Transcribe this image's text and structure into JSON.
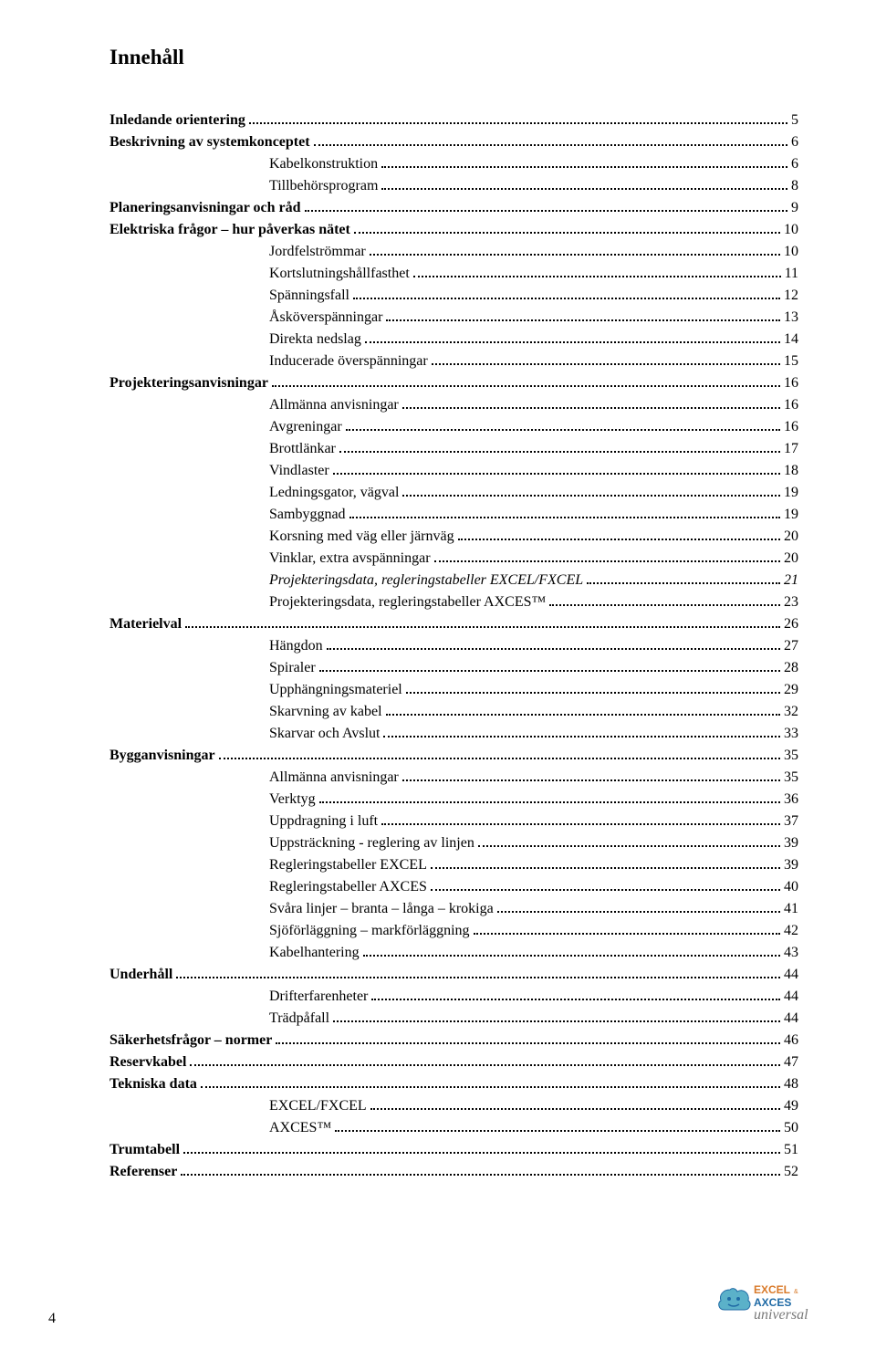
{
  "title": "Innehåll",
  "page_number": "4",
  "text_color": "#000000",
  "background_color": "#ffffff",
  "font_family": "Times New Roman",
  "logo": {
    "text_excel": "EXCEL",
    "text_axces": "AXCES",
    "text_suffix": "universal",
    "excel_color": "#d97a2a",
    "axces_color": "#1f6aa5",
    "universal_color": "#7a7a7a",
    "cloud_fill": "#5bb1c9",
    "cloud_stroke": "#1f6aa5"
  },
  "toc": [
    {
      "label": "Inledande orientering",
      "page": "5",
      "level": 0
    },
    {
      "label": "Beskrivning av systemkonceptet",
      "page": "6",
      "level": 0
    },
    {
      "label": "Kabelkonstruktion",
      "page": "6",
      "level": 1
    },
    {
      "label": "Tillbehörsprogram",
      "page": "8",
      "level": 1
    },
    {
      "label": "Planeringsanvisningar och råd",
      "page": "9",
      "level": 0
    },
    {
      "label": "Elektriska frågor – hur påverkas nätet",
      "page": "10",
      "level": 0
    },
    {
      "label": "Jordfelströmmar",
      "page": "10",
      "level": 1
    },
    {
      "label": "Kortslutningshållfasthet",
      "page": "11",
      "level": 1
    },
    {
      "label": "Spänningsfall",
      "page": "12",
      "level": 1
    },
    {
      "label": "Åsköverspänningar",
      "page": "13",
      "level": 1
    },
    {
      "label": "Direkta nedslag",
      "page": "14",
      "level": 1
    },
    {
      "label": "Inducerade överspänningar",
      "page": "15",
      "level": 1
    },
    {
      "label": "Projekteringsanvisningar",
      "page": "16",
      "level": 0
    },
    {
      "label": "Allmänna anvisningar",
      "page": "16",
      "level": 1
    },
    {
      "label": "Avgreningar",
      "page": "16",
      "level": 1
    },
    {
      "label": "Brottlänkar",
      "page": "17",
      "level": 1
    },
    {
      "label": "Vindlaster",
      "page": "18",
      "level": 1
    },
    {
      "label": "Ledningsgator, vägval",
      "page": "19",
      "level": 1
    },
    {
      "label": "Sambyggnad",
      "page": "19",
      "level": 1
    },
    {
      "label": "Korsning med väg eller järnväg",
      "page": "20",
      "level": 1
    },
    {
      "label": "Vinklar, extra avspänningar",
      "page": "20",
      "level": 1
    },
    {
      "label": "Projekteringsdata, regleringstabeller EXCEL/FXCEL",
      "page": "21",
      "level": 1,
      "italic": true
    },
    {
      "label": "Projekteringsdata, regleringstabeller AXCES™",
      "page": "23",
      "level": 1
    },
    {
      "label": "Materielval",
      "page": "26",
      "level": 0
    },
    {
      "label": "Hängdon",
      "page": "27",
      "level": 1
    },
    {
      "label": "Spiraler",
      "page": "28",
      "level": 1
    },
    {
      "label": "Upphängningsmateriel",
      "page": "29",
      "level": 1
    },
    {
      "label": "Skarvning av kabel",
      "page": "32",
      "level": 1
    },
    {
      "label": "Skarvar och Avslut",
      "page": "33",
      "level": 1
    },
    {
      "label": "Bygganvisningar",
      "page": "35",
      "level": 0
    },
    {
      "label": "Allmänna anvisningar",
      "page": "35",
      "level": 1
    },
    {
      "label": "Verktyg",
      "page": "36",
      "level": 1
    },
    {
      "label": "Uppdragning i luft",
      "page": "37",
      "level": 1
    },
    {
      "label": "Uppsträckning - reglering av linjen",
      "page": "39",
      "level": 1
    },
    {
      "label": "Regleringstabeller EXCEL",
      "page": "39",
      "level": 1
    },
    {
      "label": "Regleringstabeller AXCES",
      "page": "40",
      "level": 1
    },
    {
      "label": "Svåra linjer – branta – långa – krokiga",
      "page": "41",
      "level": 1
    },
    {
      "label": "Sjöförläggning – markförläggning",
      "page": "42",
      "level": 1
    },
    {
      "label": "Kabelhantering",
      "page": "43",
      "level": 1
    },
    {
      "label": "Underhåll",
      "page": "44",
      "level": 0
    },
    {
      "label": "Drifterfarenheter",
      "page": "44",
      "level": 1
    },
    {
      "label": "Trädpåfall",
      "page": "44",
      "level": 1
    },
    {
      "label": "Säkerhetsfrågor – normer",
      "page": "46",
      "level": 0
    },
    {
      "label": "Reservkabel",
      "page": "47",
      "level": 0
    },
    {
      "label": "Tekniska data",
      "page": "48",
      "level": 0
    },
    {
      "label": "EXCEL/FXCEL",
      "page": "49",
      "level": 1
    },
    {
      "label": "AXCES™",
      "page": "50",
      "level": 1
    },
    {
      "label": "Trumtabell",
      "page": "51",
      "level": 0
    },
    {
      "label": "Referenser",
      "page": "52",
      "level": 0
    }
  ]
}
